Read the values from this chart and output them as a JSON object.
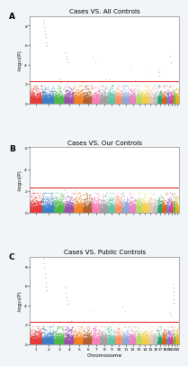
{
  "panels": [
    {
      "title": "Cases VS. All Controls",
      "label": "A",
      "ymax": 9,
      "yticks": [
        0,
        2,
        4,
        6,
        8
      ],
      "sig_hits": {
        "2": [
          [
            8.5,
            8.2,
            7.8,
            7.4,
            7.1,
            6.8,
            6.2,
            5.9
          ]
        ],
        "4": [
          [
            5.2,
            4.8,
            4.5,
            4.2
          ]
        ],
        "7": [
          [
            4.6,
            4.2
          ]
        ],
        "12": [
          [
            3.8,
            3.5
          ]
        ],
        "15": [
          [
            3.2
          ]
        ],
        "17": [
          [
            3.5,
            3.2,
            2.8
          ]
        ],
        "20": [
          [
            4.8,
            4.2
          ]
        ]
      }
    },
    {
      "title": "Cases VS. Our Controls",
      "label": "B",
      "ymax": 6,
      "yticks": [
        0,
        2,
        4,
        6
      ],
      "sig_hits": {}
    },
    {
      "title": "Cases VS. Public Controls",
      "label": "C",
      "ymax": 9,
      "yticks": [
        0,
        2,
        4,
        6,
        8
      ],
      "sig_hits": {
        "2": [
          [
            9.2,
            8.8,
            8.3,
            7.8,
            7.2,
            6.8,
            6.3,
            5.9,
            5.5
          ]
        ],
        "4": [
          [
            5.8,
            5.2,
            4.8,
            4.5,
            4.1
          ]
        ],
        "7": [
          [
            3.5
          ]
        ],
        "11": [
          [
            3.8,
            3.4
          ]
        ],
        "20": [
          [
            3.2,
            2.9
          ]
        ],
        "21": [
          [
            6.2,
            5.8,
            5.4,
            5.0,
            4.6,
            4.2
          ]
        ]
      }
    }
  ],
  "n_chromosomes": 22,
  "significance_line": 2.3,
  "chr_colors": [
    "#e6393a",
    "#3b7fc4",
    "#4cb849",
    "#9b50ac",
    "#f4811f",
    "#b06030",
    "#f77fb7",
    "#a0a0a0",
    "#5ec4a5",
    "#fc9060",
    "#8da8d8",
    "#e882c3",
    "#b8d868",
    "#f4d040",
    "#e8c898",
    "#c0c0c0",
    "#20a870",
    "#e06010",
    "#7878c4",
    "#e83898",
    "#70b030",
    "#e8b010"
  ],
  "background_color": "#f2f5f8",
  "panel_background": "#ffffff",
  "title_fontsize": 5.2,
  "label_fontsize": 6.5,
  "axis_fontsize": 4.2,
  "tick_fontsize": 3.2,
  "ylabel": "-log₁₀(P)",
  "xlabel": "Chromosome",
  "significance_color": "#dd2222",
  "significance_linewidth": 0.7
}
